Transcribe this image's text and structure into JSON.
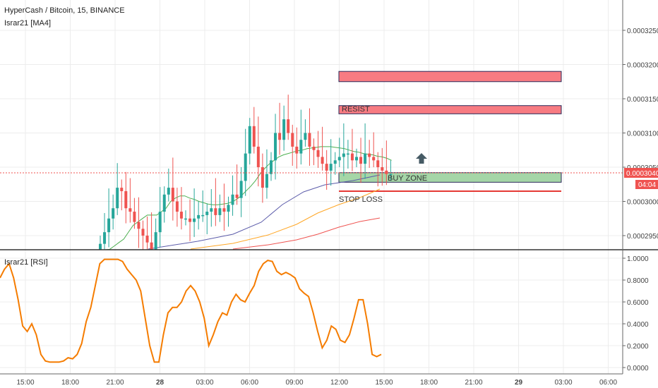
{
  "header": {
    "symbol_title": "HyperCash / Bitcoin, 15, BINANCE",
    "ma_indicator": "Israr21 [MA4]",
    "rsi_indicator": "Israr21 [RSI]"
  },
  "annotations": {
    "resist_label": "RESIST",
    "buy_zone_label": "BUY ZONE",
    "stop_loss_label": "STOP LOSS"
  },
  "price_panel": {
    "current_price": "0.0003040",
    "countdown": "04:04",
    "y_ticks": [
      "0.0003250",
      "0.0003200",
      "0.0003150",
      "0.0003100",
      "0.0003050",
      "0.0003000",
      "0.0002950"
    ]
  },
  "rsi_panel": {
    "y_ticks": [
      "1.0000",
      "0.8000",
      "0.6000",
      "0.4000",
      "0.2000",
      "0.0000"
    ]
  },
  "x_ticks": [
    "15:00",
    "18:00",
    "21:00",
    "28",
    "03:00",
    "06:00",
    "09:00",
    "12:00",
    "15:00",
    "18:00",
    "21:00",
    "29",
    "03:00",
    "06:00"
  ],
  "colors": {
    "up": "#26a69a",
    "down": "#ef5350",
    "zone_red": "#f77b82",
    "zone_green": "#a5d6a7",
    "rsi_line": "#f57c00",
    "stop_loss": "#e53935",
    "ma_fast": "#4caf50",
    "ma_slow": "#5c5caa",
    "ma_orange": "#ffa726",
    "ma_red": "#ef5350",
    "arrow": "#455a64"
  },
  "chart_data": [
    {
      "type": "candlestick",
      "title": "HyperCash / Bitcoin, 15, BINANCE",
      "x_range": [
        "27 13:30",
        "28 07:00"
      ],
      "ylim": [
        0.000293,
        0.000327
      ],
      "series": [
        {
          "name": "price",
          "close": [
            0.0002938,
            0.0002955,
            0.0002975,
            0.000299,
            0.000302,
            0.0003015,
            0.000299,
            0.0002985,
            0.000297,
            0.000296,
            0.000295,
            0.000294,
            0.000293,
            0.0002955,
            0.0002985,
            0.000301,
            0.000302,
            0.0003,
            0.0002985,
            0.0002975,
            0.0002975,
            0.000297,
            0.0002975,
            0.000298,
            0.000298,
            0.0002985,
            0.000299,
            0.000298,
            0.000299,
            0.0002985,
            0.0002995,
            0.000301,
            0.0003005,
            0.000303,
            0.000307,
            0.000311,
            0.000308,
            0.000305,
            0.000302,
            0.000304,
            0.000306,
            0.00031,
            0.000309,
            0.000312,
            0.00031,
            0.000308,
            0.000307,
            0.000309,
            0.00031,
            0.000308,
            0.0003075,
            0.0003065,
            0.0003055,
            0.0003045,
            0.0003055,
            0.000306,
            0.0003065,
            0.000307,
            0.000307,
            0.000306,
            0.0003065,
            0.0003055,
            0.000307,
            0.0003065,
            0.000306,
            0.000305,
            0.0003045,
            0.000304,
            0.000304
          ]
        },
        {
          "name": "MA fast",
          "values": [
            0.000292,
            0.0002925,
            0.000293,
            0.0002935,
            0.000294,
            0.0002945,
            0.0002955,
            0.0002965,
            0.000297,
            0.0002975,
            0.000298,
            0.000298,
            0.000298,
            0.0002985,
            0.000299,
            0.0003,
            0.0003005,
            0.0003008,
            0.0003008,
            0.0003005,
            0.0003003,
            0.0003,
            0.0002998,
            0.0002996,
            0.0002995,
            0.0002995,
            0.0002996,
            0.0002997,
            0.0002999,
            0.0003003,
            0.0003008,
            0.0003015,
            0.0003022,
            0.000303,
            0.000304,
            0.0003048,
            0.0003055,
            0.000306,
            0.0003065,
            0.0003068,
            0.000307,
            0.0003072,
            0.0003074,
            0.0003075,
            0.0003077,
            0.0003078,
            0.0003079,
            0.000308,
            0.000308,
            0.000308,
            0.0003079,
            0.0003078,
            0.0003077,
            0.0003075,
            0.0003073,
            0.0003072,
            0.000307,
            0.0003069,
            0.0003068,
            0.0003066,
            0.0003065,
            0.0003063,
            0.000306
          ]
        }
      ],
      "zones": [
        {
          "name": "RESIST",
          "ymin": 0.0003175,
          "ymax": 0.000319
        },
        {
          "name": "RESIST",
          "ymin": 0.0003128,
          "ymax": 0.000314
        },
        {
          "name": "BUY ZONE",
          "ymin": 0.0003028,
          "ymax": 0.0003042
        },
        {
          "name": "STOP LOSS",
          "y": 0.0003015
        }
      ],
      "current_price": 0.000304
    },
    {
      "type": "line",
      "title": "Israr21 [RSI]",
      "ylim": [
        0,
        1
      ],
      "series": [
        {
          "name": "RSI",
          "values": [
            0.82,
            0.9,
            0.95,
            0.82,
            0.62,
            0.38,
            0.33,
            0.4,
            0.3,
            0.12,
            0.06,
            0.05,
            0.05,
            0.05,
            0.06,
            0.09,
            0.08,
            0.12,
            0.22,
            0.42,
            0.55,
            0.75,
            0.95,
            0.99,
            0.99,
            0.99,
            0.99,
            0.97,
            0.9,
            0.85,
            0.8,
            0.7,
            0.45,
            0.2,
            0.05,
            0.05,
            0.3,
            0.5,
            0.55,
            0.55,
            0.6,
            0.7,
            0.75,
            0.7,
            0.6,
            0.45,
            0.2,
            0.3,
            0.42,
            0.5,
            0.48,
            0.6,
            0.67,
            0.62,
            0.6,
            0.68,
            0.75,
            0.88,
            0.95,
            0.98,
            0.97,
            0.88,
            0.85,
            0.87,
            0.85,
            0.82,
            0.72,
            0.68,
            0.65,
            0.5,
            0.33,
            0.18,
            0.25,
            0.38,
            0.35,
            0.25,
            0.23,
            0.3,
            0.45,
            0.62,
            0.62,
            0.4,
            0.12,
            0.1,
            0.12
          ]
        }
      ],
      "x_ticks": [
        "15:00",
        "18:00",
        "21:00",
        "28",
        "03:00",
        "06:00",
        "09:00",
        "12:00",
        "15:00",
        "18:00",
        "21:00",
        "29",
        "03:00",
        "06:00"
      ]
    }
  ]
}
